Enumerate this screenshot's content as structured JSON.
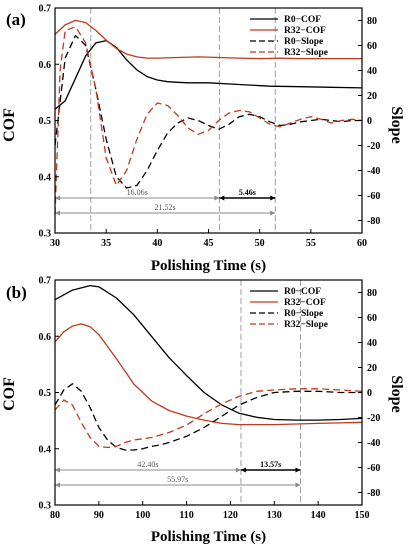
{
  "chart_data": [
    {
      "type": "line",
      "panel_label": "(a)",
      "xlabel": "Polishing Time (s)",
      "ylabel": "COF",
      "ylabel_right": "Slope",
      "xlim": [
        30,
        60
      ],
      "ylim": [
        0.3,
        0.7
      ],
      "ylim_right": [
        -90,
        90
      ],
      "x_ticks": [
        "30",
        "35",
        "40",
        "45",
        "50",
        "55",
        "60"
      ],
      "y_ticks": [
        "0.3",
        "0.4",
        "0.5",
        "0.6",
        "0.7"
      ],
      "y_ticks_right": [
        "-80",
        "-60",
        "-40",
        "-20",
        "0",
        "20",
        "40",
        "60",
        "80"
      ],
      "legend_position": "top-right",
      "colors": {
        "r0": "#000000",
        "r32": "#c0391b",
        "annotation": "#888888"
      },
      "series": [
        {
          "name": "R0−COF",
          "axis": "left",
          "style": "solid",
          "color": "#000000",
          "x": [
            30,
            31,
            32,
            33,
            34,
            35,
            36,
            37,
            38,
            39,
            40,
            41,
            42,
            43,
            45,
            48,
            51,
            54,
            57,
            60
          ],
          "y": [
            0.52,
            0.535,
            0.575,
            0.615,
            0.638,
            0.642,
            0.63,
            0.608,
            0.59,
            0.578,
            0.572,
            0.569,
            0.568,
            0.567,
            0.567,
            0.564,
            0.561,
            0.56,
            0.559,
            0.558
          ]
        },
        {
          "name": "R32−COF",
          "axis": "left",
          "style": "solid",
          "color": "#c0391b",
          "x": [
            30,
            31,
            32,
            33,
            34,
            35,
            36,
            37,
            38,
            39,
            40,
            42,
            44,
            46,
            48,
            50,
            52,
            54,
            56,
            58,
            60
          ],
          "y": [
            0.653,
            0.67,
            0.678,
            0.674,
            0.66,
            0.643,
            0.628,
            0.618,
            0.613,
            0.611,
            0.611,
            0.612,
            0.613,
            0.612,
            0.611,
            0.61,
            0.611,
            0.61,
            0.61,
            0.61,
            0.61
          ]
        },
        {
          "name": "R0−Slope",
          "axis": "right",
          "style": "dashed",
          "color": "#000000",
          "x": [
            30,
            31,
            32,
            33,
            34,
            35,
            36,
            37,
            38,
            39,
            40,
            41,
            42,
            43,
            44,
            45,
            46,
            47,
            48,
            49,
            50,
            51,
            52,
            53,
            54,
            55,
            56,
            57,
            58,
            59,
            60
          ],
          "y": [
            -20,
            50,
            68,
            60,
            25,
            -15,
            -45,
            -54,
            -52,
            -40,
            -24,
            -10,
            -2,
            2,
            0,
            -4,
            -7,
            -3,
            3,
            5,
            3,
            -1,
            -4,
            -3,
            -1,
            0,
            1,
            0,
            -1,
            0,
            0
          ]
        },
        {
          "name": "R32−Slope",
          "axis": "right",
          "style": "dashed",
          "color": "#c0391b",
          "x": [
            30,
            30.5,
            31,
            32,
            33,
            34,
            35,
            36,
            37,
            38,
            39,
            40,
            41,
            42,
            43,
            44,
            45,
            46,
            47,
            48,
            49,
            50,
            51,
            52,
            53,
            54,
            55,
            56,
            57,
            58,
            59,
            60
          ],
          "y": [
            -75,
            40,
            72,
            75,
            62,
            25,
            -30,
            -52,
            -40,
            -15,
            5,
            14,
            12,
            4,
            -6,
            -11,
            -8,
            0,
            6,
            8,
            7,
            2,
            -3,
            -5,
            -2,
            1,
            3,
            1,
            -2,
            0,
            1,
            0
          ]
        }
      ],
      "vlines": [
        33.5,
        46.06,
        51.52
      ],
      "annotations": [
        {
          "text": "16.06s",
          "from": 30,
          "to": 46.06,
          "y_right": -62,
          "bold": false
        },
        {
          "text": "5.46s",
          "from": 46.06,
          "to": 51.52,
          "y_right": -62,
          "bold": true
        },
        {
          "text": "21.52s",
          "from": 30,
          "to": 51.52,
          "y_right": -74,
          "bold": false
        }
      ]
    },
    {
      "type": "line",
      "panel_label": "(b)",
      "xlabel": "Polishing Time (s)",
      "ylabel": "COF",
      "ylabel_right": "Slope",
      "xlim": [
        80,
        150
      ],
      "ylim": [
        0.3,
        0.7
      ],
      "ylim_right": [
        -90,
        90
      ],
      "x_ticks": [
        "80",
        "90",
        "100",
        "110",
        "120",
        "130",
        "140",
        "150"
      ],
      "y_ticks": [
        "0.3",
        "0.4",
        "0.5",
        "0.6",
        "0.7"
      ],
      "y_ticks_right": [
        "-80",
        "-60",
        "-40",
        "-20",
        "0",
        "20",
        "40",
        "60",
        "80"
      ],
      "legend_position": "top-right",
      "colors": {
        "r0": "#000000",
        "r32": "#c0391b",
        "annotation": "#888888"
      },
      "series": [
        {
          "name": "R0−COF",
          "axis": "left",
          "style": "solid",
          "color": "#000000",
          "x": [
            80,
            84,
            88,
            90,
            94,
            98,
            102,
            106,
            110,
            114,
            118,
            122,
            126,
            130,
            135,
            140,
            145,
            150
          ],
          "y": [
            0.665,
            0.682,
            0.69,
            0.688,
            0.668,
            0.638,
            0.6,
            0.562,
            0.53,
            0.5,
            0.478,
            0.463,
            0.456,
            0.452,
            0.451,
            0.451,
            0.452,
            0.454
          ]
        },
        {
          "name": "R32−COF",
          "axis": "left",
          "style": "solid",
          "color": "#c0391b",
          "x": [
            80,
            82,
            84,
            86,
            88,
            90,
            94,
            98,
            102,
            106,
            110,
            114,
            118,
            122,
            126,
            130,
            135,
            140,
            145,
            150
          ],
          "y": [
            0.59,
            0.608,
            0.618,
            0.622,
            0.617,
            0.603,
            0.56,
            0.515,
            0.485,
            0.468,
            0.458,
            0.451,
            0.445,
            0.443,
            0.443,
            0.443,
            0.444,
            0.445,
            0.446,
            0.447
          ]
        },
        {
          "name": "R0−Slope",
          "axis": "right",
          "style": "dashed",
          "color": "#000000",
          "x": [
            80,
            82,
            84,
            86,
            88,
            90,
            92,
            94,
            96,
            98,
            100,
            102,
            104,
            106,
            110,
            114,
            118,
            122,
            126,
            130,
            135,
            140,
            145,
            150
          ],
          "y": [
            -10,
            2,
            7,
            1,
            -12,
            -28,
            -38,
            -44,
            -46,
            -46,
            -45,
            -43,
            -42,
            -40,
            -35,
            -28,
            -19,
            -10,
            -4,
            0,
            1,
            1,
            0,
            0
          ]
        },
        {
          "name": "R32−Slope",
          "axis": "right",
          "style": "dashed",
          "color": "#c0391b",
          "x": [
            80,
            82,
            84,
            86,
            88,
            90,
            92,
            94,
            96,
            98,
            100,
            102,
            106,
            110,
            114,
            118,
            122,
            126,
            130,
            135,
            140,
            145,
            150
          ],
          "y": [
            -14,
            -6,
            -10,
            -24,
            -36,
            -43,
            -44,
            -43,
            -40,
            -38,
            -37,
            -36,
            -32,
            -26,
            -17,
            -9,
            -3,
            1,
            2,
            3,
            3,
            2,
            1
          ]
        }
      ],
      "vlines": [
        122.4,
        135.97
      ],
      "annotations": [
        {
          "text": "42.40s",
          "from": 80,
          "to": 122.4,
          "y_right": -62,
          "bold": false
        },
        {
          "text": "13.57s",
          "from": 122.4,
          "to": 135.97,
          "y_right": -62,
          "bold": true
        },
        {
          "text": "55.97s",
          "from": 80,
          "to": 135.97,
          "y_right": -74,
          "bold": false
        }
      ]
    }
  ]
}
